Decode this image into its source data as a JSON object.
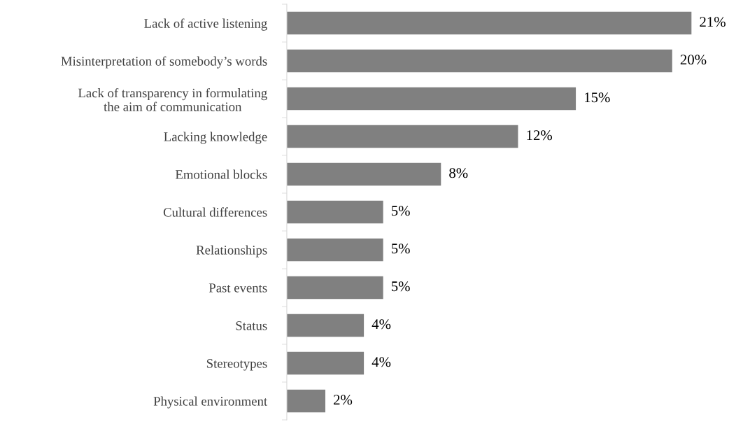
{
  "chart_data": {
    "type": "bar",
    "orientation": "horizontal",
    "categories": [
      "Lack of active listening",
      "Misinterpretation of somebody’s words",
      "Lack of transparency in formulating\nthe aim of communication",
      "Lacking knowledge",
      "Emotional blocks",
      "Cultural differences",
      "Relationships",
      "Past events",
      "Status",
      "Stereotypes",
      "Physical environment"
    ],
    "values": [
      21,
      20,
      15,
      12,
      8,
      5,
      5,
      5,
      4,
      4,
      2
    ],
    "value_labels": [
      "21%",
      "20%",
      "15%",
      "12%",
      "8%",
      "5%",
      "5%",
      "5%",
      "4%",
      "4%",
      "2%"
    ],
    "color": "#808080",
    "grid": false,
    "legend": false
  }
}
